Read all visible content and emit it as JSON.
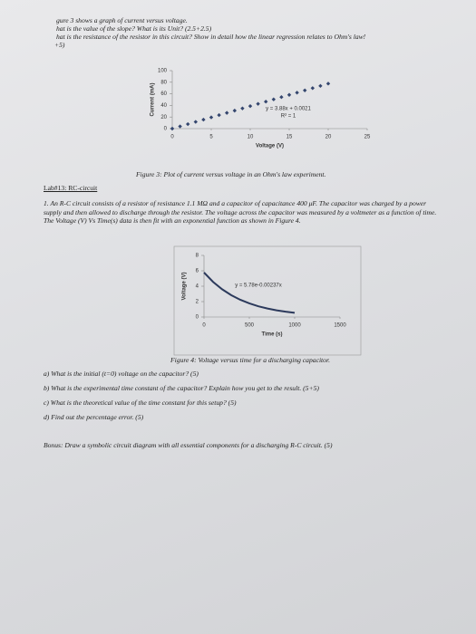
{
  "document": {
    "intro": [
      "gure 3 shows a graph of current versus voltage.",
      "hat is the value of the slope? What is its Unit? (2.5+2.5)",
      "hat is the resistance of the resistor in this circuit? Show in detail how the linear regression relates to Ohm's law!",
      "+5)"
    ],
    "caption_3": "Figure 3: Plot of current versus voltage in an Ohm's law experiment.",
    "heading": "Lab#13: RC-circuit",
    "problem": "1. An R-C circuit consists of a resistor of resistance 1.1 MΩ and a capacitor of capacitance 400 μF. The capacitor was charged by a power supply and then allowed to discharge through the resistor. The voltage across the capacitor was measured by a voltmeter as a function of time. The Voltage (V) Vs Time(s) data is then fit with an exponential function as shown in Figure 4.",
    "caption_4": "Figure 4: Voltage versus time for a discharging capacitor.",
    "questions": [
      "a) What is the initial (t=0) voltage on the capacitor? (5)",
      "b) What is the experimental time constant of the capacitor? Explain how you get to the result. (5+5)",
      "c) What is the theoretical value of the time constant for this setup? (5)",
      "d) Find out the percentage error. (5)"
    ],
    "bonus": "Bonus: Draw a symbolic circuit diagram with all essential components for a discharging R-C circuit. (5)"
  },
  "chart_data": [
    {
      "type": "scatter",
      "x_label": "Voltage (V)",
      "y_label": "Current (mA)",
      "annotations": [
        "y = 3.88x + 0.0021",
        "R² = 1"
      ],
      "x": [
        0,
        1,
        2,
        3,
        4,
        5,
        6,
        7,
        8,
        9,
        10,
        11,
        12,
        13,
        14,
        15,
        16,
        17,
        18,
        19,
        20
      ],
      "values": [
        0,
        3.88,
        7.76,
        11.64,
        15.52,
        19.4,
        23.28,
        27.16,
        31.04,
        34.92,
        38.8,
        42.68,
        46.56,
        50.44,
        54.32,
        58.2,
        62.08,
        65.96,
        69.84,
        73.72,
        77.6
      ],
      "color": "#34466e",
      "xlim": [
        0,
        25
      ],
      "ylim": [
        0,
        100
      ],
      "xticks": [
        0,
        5,
        10,
        15,
        20,
        25
      ],
      "yticks": [
        0,
        20,
        40,
        60,
        80,
        100
      ],
      "border": false
    },
    {
      "type": "line",
      "x_label": "Time (s)",
      "y_label": "Voltage (V)",
      "annotations": [
        "y = 5.78e-0.00237x"
      ],
      "x": [
        0,
        100,
        200,
        300,
        400,
        500,
        600,
        700,
        800,
        900,
        1000
      ],
      "values": [
        5.78,
        4.56,
        3.6,
        2.84,
        2.24,
        1.77,
        1.39,
        1.1,
        0.87,
        0.69,
        0.54
      ],
      "color": "#2c3a5c",
      "xlim": [
        0,
        1500
      ],
      "ylim": [
        0,
        8
      ],
      "xticks": [
        0,
        500,
        1000,
        1500
      ],
      "yticks": [
        0,
        2,
        4,
        6,
        8
      ],
      "border": true
    }
  ]
}
